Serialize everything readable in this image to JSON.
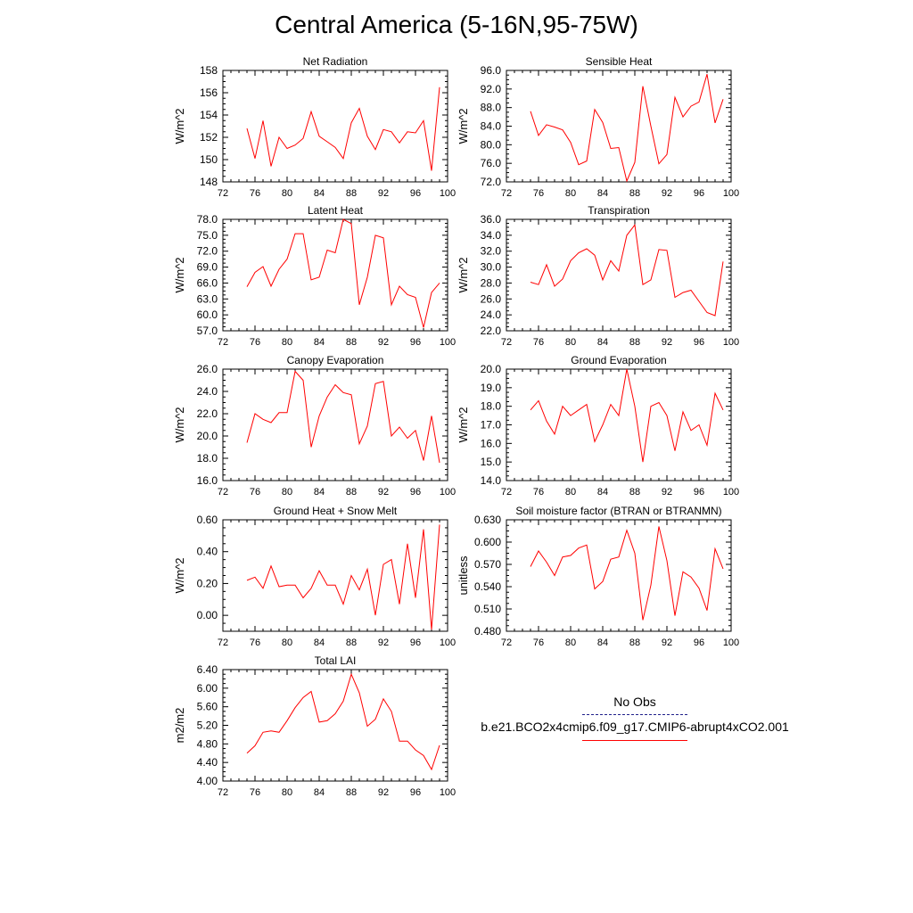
{
  "title": "Central America (5-16N,95-75W)",
  "colors": {
    "model_line": "#ff0000",
    "obs_line": "#20208a",
    "axis": "#000000"
  },
  "legend": {
    "entries": [
      {
        "label": "No Obs",
        "style": "dashed",
        "color": "#20208a"
      },
      {
        "label": "b.e21.BCO2x4cmip6.f09_g17.CMIP6-abrupt4xCO2.001",
        "style": "solid",
        "color": "#ff0000"
      }
    ]
  },
  "chart_data": [
    {
      "type": "line",
      "title": "Net Radiation",
      "ylabel": "W/m^2",
      "xlim": [
        72,
        100
      ],
      "xticks": [
        "72",
        "76",
        "80",
        "84",
        "88",
        "92",
        "96",
        "100"
      ],
      "ylim": [
        148,
        158
      ],
      "yticks": [
        "148",
        "150",
        "152",
        "154",
        "156",
        "158"
      ],
      "x": [
        75,
        76,
        77,
        78,
        79,
        80,
        81,
        82,
        83,
        84,
        85,
        86,
        87,
        88,
        89,
        90,
        91,
        92,
        93,
        94,
        95,
        96,
        97,
        98,
        99
      ],
      "series": [
        {
          "name": "b.e21.BCO2x4cmip6.f09_g17.CMIP6-abrupt4xCO2.001",
          "values": [
            152.8,
            150.1,
            153.5,
            149.4,
            152.0,
            151.0,
            151.3,
            151.9,
            154.3,
            152.1,
            151.6,
            151.1,
            150.1,
            153.3,
            154.6,
            152.1,
            150.9,
            152.7,
            152.5,
            151.5,
            152.5,
            152.4,
            153.5,
            149.0,
            156.5
          ]
        }
      ]
    },
    {
      "type": "line",
      "title": "Sensible Heat",
      "ylabel": "W/m^2",
      "xlim": [
        72,
        100
      ],
      "xticks": [
        "72",
        "76",
        "80",
        "84",
        "88",
        "92",
        "96",
        "100"
      ],
      "ylim": [
        72,
        96
      ],
      "yticks": [
        "72.0",
        "76.0",
        "80.0",
        "84.0",
        "88.0",
        "92.0",
        "96.0"
      ],
      "x": [
        75,
        76,
        77,
        78,
        79,
        80,
        81,
        82,
        83,
        84,
        85,
        86,
        87,
        88,
        89,
        90,
        91,
        92,
        93,
        94,
        95,
        96,
        97,
        98,
        99
      ],
      "series": [
        {
          "name": "b.e21.BCO2x4cmip6.f09_g17.CMIP6-abrupt4xCO2.001",
          "values": [
            87.2,
            82.0,
            84.3,
            83.8,
            83.2,
            80.5,
            75.7,
            76.5,
            87.6,
            84.8,
            79.2,
            79.4,
            72.2,
            76.2,
            92.6,
            84.0,
            75.9,
            77.9,
            90.2,
            86.0,
            88.3,
            89.2,
            95.2,
            84.7,
            89.8
          ]
        }
      ]
    },
    {
      "type": "line",
      "title": "Latent Heat",
      "ylabel": "W/m^2",
      "xlim": [
        72,
        100
      ],
      "xticks": [
        "72",
        "76",
        "80",
        "84",
        "88",
        "92",
        "96",
        "100"
      ],
      "ylim": [
        57,
        78
      ],
      "yticks": [
        "57.0",
        "60.0",
        "63.0",
        "66.0",
        "69.0",
        "72.0",
        "75.0",
        "78.0"
      ],
      "x": [
        75,
        76,
        77,
        78,
        79,
        80,
        81,
        82,
        83,
        84,
        85,
        86,
        87,
        88,
        89,
        90,
        91,
        92,
        93,
        94,
        95,
        96,
        97,
        98,
        99
      ],
      "series": [
        {
          "name": "b.e21.BCO2x4cmip6.f09_g17.CMIP6-abrupt4xCO2.001",
          "values": [
            65.3,
            68.0,
            69.1,
            65.4,
            68.6,
            70.5,
            75.3,
            75.3,
            66.6,
            67.1,
            72.2,
            71.7,
            78.0,
            77.2,
            61.9,
            67.1,
            75.0,
            74.5,
            61.9,
            65.4,
            63.8,
            63.3,
            57.6,
            64.2,
            66.0
          ]
        }
      ]
    },
    {
      "type": "line",
      "title": "Transpiration",
      "ylabel": "W/m^2",
      "xlim": [
        72,
        100
      ],
      "xticks": [
        "72",
        "76",
        "80",
        "84",
        "88",
        "92",
        "96",
        "100"
      ],
      "ylim": [
        22,
        36
      ],
      "yticks": [
        "22.0",
        "24.0",
        "26.0",
        "28.0",
        "30.0",
        "32.0",
        "34.0",
        "36.0"
      ],
      "x": [
        75,
        76,
        77,
        78,
        79,
        80,
        81,
        82,
        83,
        84,
        85,
        86,
        87,
        88,
        89,
        90,
        91,
        92,
        93,
        94,
        95,
        96,
        97,
        98,
        99
      ],
      "series": [
        {
          "name": "b.e21.BCO2x4cmip6.f09_g17.CMIP6-abrupt4xCO2.001",
          "values": [
            28.1,
            27.8,
            30.3,
            27.6,
            28.5,
            30.8,
            31.8,
            32.3,
            31.5,
            28.4,
            30.8,
            29.5,
            34.0,
            35.3,
            27.8,
            28.4,
            32.2,
            32.1,
            26.2,
            26.8,
            27.1,
            25.7,
            24.3,
            23.9,
            30.7
          ]
        }
      ]
    },
    {
      "type": "line",
      "title": "Canopy Evaporation",
      "ylabel": "W/m^2",
      "xlim": [
        72,
        100
      ],
      "xticks": [
        "72",
        "76",
        "80",
        "84",
        "88",
        "92",
        "96",
        "100"
      ],
      "ylim": [
        16,
        26
      ],
      "yticks": [
        "16.0",
        "18.0",
        "20.0",
        "22.0",
        "24.0",
        "26.0"
      ],
      "x": [
        75,
        76,
        77,
        78,
        79,
        80,
        81,
        82,
        83,
        84,
        85,
        86,
        87,
        88,
        89,
        90,
        91,
        92,
        93,
        94,
        95,
        96,
        97,
        98,
        99
      ],
      "series": [
        {
          "name": "b.e21.BCO2x4cmip6.f09_g17.CMIP6-abrupt4xCO2.001",
          "values": [
            19.4,
            22.0,
            21.5,
            21.2,
            22.1,
            22.1,
            25.8,
            25.0,
            19.0,
            21.8,
            23.5,
            24.6,
            23.9,
            23.7,
            19.3,
            20.9,
            24.7,
            24.9,
            20.0,
            20.8,
            19.8,
            20.5,
            17.8,
            21.8,
            17.6
          ]
        }
      ]
    },
    {
      "type": "line",
      "title": "Ground Evaporation",
      "ylabel": "W/m^2",
      "xlim": [
        72,
        100
      ],
      "xticks": [
        "72",
        "76",
        "80",
        "84",
        "88",
        "92",
        "96",
        "100"
      ],
      "ylim": [
        14,
        20
      ],
      "yticks": [
        "14.0",
        "15.0",
        "16.0",
        "17.0",
        "18.0",
        "19.0",
        "20.0"
      ],
      "x": [
        75,
        76,
        77,
        78,
        79,
        80,
        81,
        82,
        83,
        84,
        85,
        86,
        87,
        88,
        89,
        90,
        91,
        92,
        93,
        94,
        95,
        96,
        97,
        98,
        99
      ],
      "series": [
        {
          "name": "b.e21.BCO2x4cmip6.f09_g17.CMIP6-abrupt4xCO2.001",
          "values": [
            17.8,
            18.3,
            17.2,
            16.5,
            18.0,
            17.5,
            17.8,
            18.1,
            16.1,
            17.0,
            18.1,
            17.5,
            20.0,
            18.0,
            15.0,
            18.0,
            18.2,
            17.5,
            15.6,
            17.7,
            16.7,
            17.0,
            15.9,
            18.7,
            17.8
          ]
        }
      ]
    },
    {
      "type": "line",
      "title": "Ground Heat + Snow Melt",
      "ylabel": "W/m^2",
      "xlim": [
        72,
        100
      ],
      "xticks": [
        "72",
        "76",
        "80",
        "84",
        "88",
        "92",
        "96",
        "100"
      ],
      "ylim": [
        -0.1,
        0.6
      ],
      "yticks": [
        "0.00",
        "0.20",
        "0.40",
        "0.60"
      ],
      "ytick_values": [
        0,
        0.2,
        0.4,
        0.6
      ],
      "x": [
        75,
        76,
        77,
        78,
        79,
        80,
        81,
        82,
        83,
        84,
        85,
        86,
        87,
        88,
        89,
        90,
        91,
        92,
        93,
        94,
        95,
        96,
        97,
        98,
        99
      ],
      "series": [
        {
          "name": "b.e21.BCO2x4cmip6.f09_g17.CMIP6-abrupt4xCO2.001",
          "values": [
            0.22,
            0.24,
            0.17,
            0.31,
            0.18,
            0.19,
            0.19,
            0.11,
            0.17,
            0.28,
            0.19,
            0.19,
            0.07,
            0.25,
            0.16,
            0.29,
            0.0,
            0.32,
            0.35,
            0.07,
            0.45,
            0.11,
            0.54,
            -0.09,
            0.57
          ]
        }
      ]
    },
    {
      "type": "line",
      "title": "Soil moisture factor (BTRAN or BTRANMN)",
      "ylabel": "unitless",
      "xlim": [
        72,
        100
      ],
      "xticks": [
        "72",
        "76",
        "80",
        "84",
        "88",
        "92",
        "96",
        "100"
      ],
      "ylim": [
        0.48,
        0.63
      ],
      "yticks": [
        "0.480",
        "0.510",
        "0.540",
        "0.570",
        "0.600",
        "0.630"
      ],
      "x": [
        75,
        76,
        77,
        78,
        79,
        80,
        81,
        82,
        83,
        84,
        85,
        86,
        87,
        88,
        89,
        90,
        91,
        92,
        93,
        94,
        95,
        96,
        97,
        98,
        99
      ],
      "series": [
        {
          "name": "b.e21.BCO2x4cmip6.f09_g17.CMIP6-abrupt4xCO2.001",
          "values": [
            0.567,
            0.588,
            0.573,
            0.555,
            0.58,
            0.582,
            0.592,
            0.596,
            0.537,
            0.547,
            0.577,
            0.58,
            0.616,
            0.585,
            0.495,
            0.542,
            0.621,
            0.575,
            0.501,
            0.56,
            0.553,
            0.538,
            0.508,
            0.591,
            0.564
          ]
        }
      ]
    },
    {
      "type": "line",
      "title": "Total LAI",
      "ylabel": "m2/m2",
      "xlim": [
        72,
        100
      ],
      "xticks": [
        "72",
        "76",
        "80",
        "84",
        "88",
        "92",
        "96",
        "100"
      ],
      "ylim": [
        4.0,
        6.4
      ],
      "yticks": [
        "4.00",
        "4.40",
        "4.80",
        "5.20",
        "5.60",
        "6.00",
        "6.40"
      ],
      "x": [
        75,
        76,
        77,
        78,
        79,
        80,
        81,
        82,
        83,
        84,
        85,
        86,
        87,
        88,
        89,
        90,
        91,
        92,
        93,
        94,
        95,
        96,
        97,
        98,
        99
      ],
      "series": [
        {
          "name": "b.e21.BCO2x4cmip6.f09_g17.CMIP6-abrupt4xCO2.001",
          "values": [
            4.6,
            4.76,
            5.05,
            5.08,
            5.05,
            5.3,
            5.58,
            5.8,
            5.93,
            5.27,
            5.3,
            5.45,
            5.72,
            6.3,
            5.9,
            5.18,
            5.33,
            5.77,
            5.5,
            4.86,
            4.86,
            4.67,
            4.55,
            4.25,
            4.77
          ]
        }
      ]
    }
  ]
}
